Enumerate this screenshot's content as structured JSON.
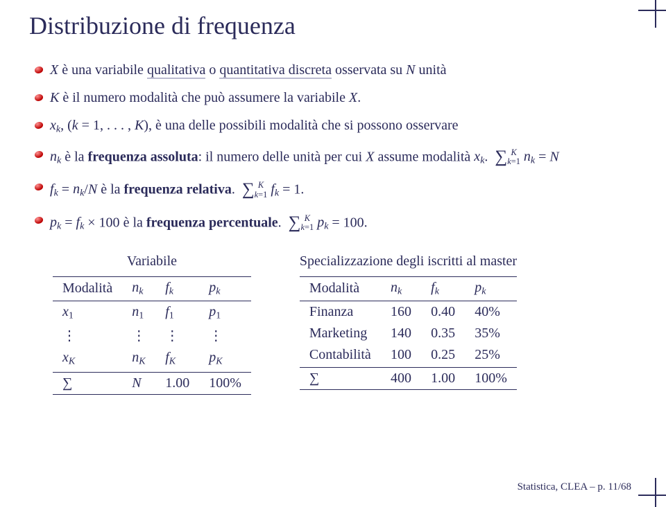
{
  "title": "Distribuzione di frequenza",
  "bullets": {
    "b1_pre": " è una variabile ",
    "b1_ul1": "qualitativa",
    "b1_mid1": " o ",
    "b1_ul2": "quantitativa discreta",
    "b1_mid2": " osservata su ",
    "b1_post": " unità",
    "b2_pre": " è il numero modalità che può assumere la variabile ",
    "b3_post": ", è una delle possibili modalità che si possono osservare",
    "b4_text1": " è la ",
    "b4_bold": "frequenza assoluta",
    "b4_text2": ": il numero delle unità per cui ",
    "b4_text3": " assume modalità ",
    "b5_text1": " è la ",
    "b5_bold": "frequenza relativa",
    "b6_text1": " è la ",
    "b6_bold": "frequenza percentuale"
  },
  "leftTable": {
    "caption": "Variabile",
    "header": [
      "Modalità",
      "nₖ",
      "fₖ",
      "pₖ"
    ],
    "row1": [
      "x₁",
      "n₁",
      "f₁",
      "p₁"
    ],
    "rowdots": [
      "⋮",
      "⋮",
      "⋮",
      "⋮"
    ],
    "rowK": [
      "x_K",
      "n_K",
      "f_K",
      "p_K"
    ],
    "footer": [
      "∑",
      "N",
      "1.00",
      "100%"
    ]
  },
  "rightTable": {
    "caption": "Specializzazione degli iscritti al master",
    "header": [
      "Modalità",
      "nₖ",
      "fₖ",
      "pₖ"
    ],
    "rows": [
      [
        "Finanza",
        "160",
        "0.40",
        "40%"
      ],
      [
        "Marketing",
        "140",
        "0.35",
        "35%"
      ],
      [
        "Contabilità",
        "100",
        "0.25",
        "25%"
      ]
    ],
    "footer": [
      "∑",
      "400",
      "1.00",
      "100%"
    ]
  },
  "footer": "Statistica, CLEA – p. 11/68",
  "colors": {
    "text": "#2b2b5a",
    "bullet": "#bb0000",
    "underline": "rgba(60,60,120,0.35)",
    "bg": "#ffffff"
  }
}
